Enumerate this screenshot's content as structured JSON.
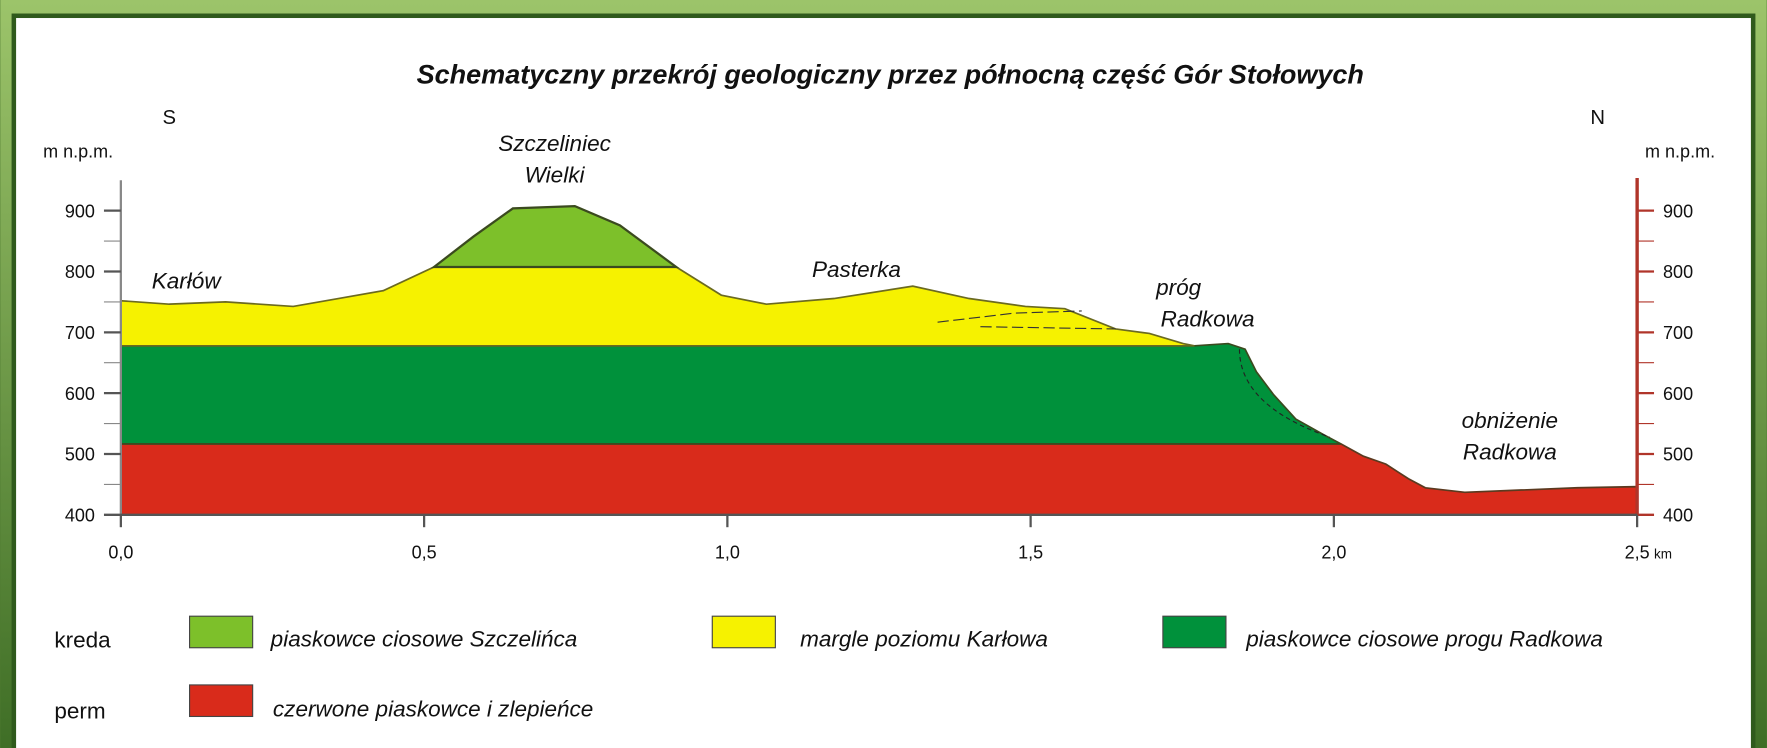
{
  "title": "Schematyczny przekrój geologiczny przez północną część Gór Stołowych",
  "directions": {
    "south": "S",
    "north": "N"
  },
  "axis_labels": {
    "left": "m n.p.m.",
    "right": "m n.p.m.",
    "x_unit": "km"
  },
  "y_ticks": [
    "900",
    "800",
    "700",
    "600",
    "500",
    "400"
  ],
  "x_ticks": [
    "0,0",
    "0,5",
    "1,0",
    "1,5",
    "2,0",
    "2,5"
  ],
  "places": [
    {
      "lines": [
        "Szczeliniec",
        "Wielki"
      ]
    },
    {
      "lines": [
        "Karłów"
      ]
    },
    {
      "lines": [
        "Pasterka"
      ]
    },
    {
      "lines": [
        "próg",
        "Radkowa"
      ]
    },
    {
      "lines": [
        "obniżenie",
        "Radkowa"
      ]
    }
  ],
  "legend": [
    {
      "group": "kreda",
      "items": [
        "piaskowce ciosowe Szczelińca",
        "margle poziomu Karłowa",
        "piaskowce ciosowe progu Radkowa"
      ]
    },
    {
      "group": "perm",
      "items": [
        "czerwone piaskowce i zlepieńce"
      ]
    }
  ]
}
